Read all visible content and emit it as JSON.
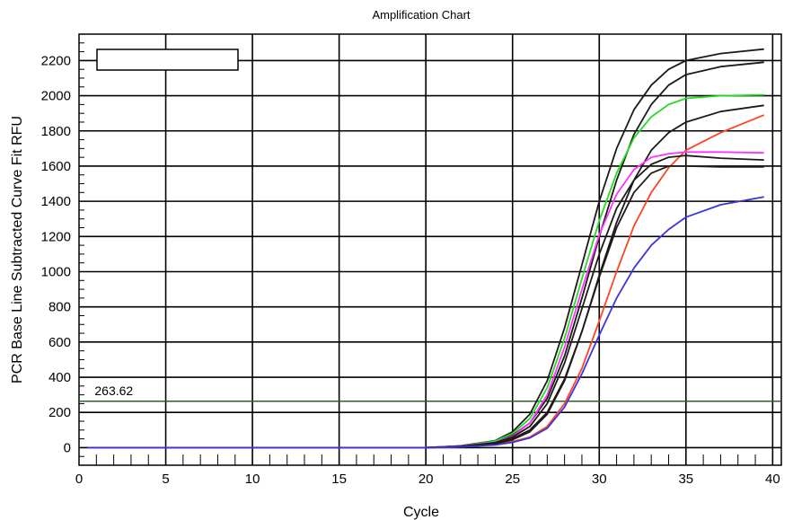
{
  "chart_data": {
    "type": "line",
    "title": "Amplification Chart",
    "xlabel": "Cycle",
    "ylabel": "PCR Base Line Subtracted Curve Fit RFU",
    "xlim": [
      0,
      40.5
    ],
    "ylim": [
      -100,
      2350
    ],
    "x_ticks": [
      0,
      5,
      10,
      15,
      20,
      25,
      30,
      35,
      40
    ],
    "y_ticks": [
      0,
      200,
      400,
      600,
      800,
      1000,
      1200,
      1400,
      1600,
      1800,
      2000,
      2200
    ],
    "grid": true,
    "legend_box": "top-left",
    "threshold": {
      "value": 263.62,
      "label": "263.62",
      "color": "#2e5e2e"
    },
    "series": [
      {
        "color": "#1f1a1a",
        "values": [
          [
            1,
            0
          ],
          [
            20,
            0
          ],
          [
            22,
            10
          ],
          [
            24,
            40
          ],
          [
            25,
            90
          ],
          [
            26,
            190
          ],
          [
            27,
            380
          ],
          [
            28,
            680
          ],
          [
            29,
            1040
          ],
          [
            30,
            1400
          ],
          [
            31,
            1700
          ],
          [
            32,
            1920
          ],
          [
            33,
            2060
          ],
          [
            34,
            2150
          ],
          [
            35,
            2200
          ],
          [
            37,
            2240
          ],
          [
            39.5,
            2265
          ]
        ]
      },
      {
        "color": "#1f1a1a",
        "values": [
          [
            20,
            0
          ],
          [
            22,
            8
          ],
          [
            24,
            35
          ],
          [
            25,
            70
          ],
          [
            26,
            140
          ],
          [
            27,
            280
          ],
          [
            28,
            520
          ],
          [
            29,
            850
          ],
          [
            30,
            1200
          ],
          [
            31,
            1520
          ],
          [
            32,
            1780
          ],
          [
            33,
            1950
          ],
          [
            34,
            2060
          ],
          [
            35,
            2120
          ],
          [
            37,
            2165
          ],
          [
            39.5,
            2190
          ]
        ]
      },
      {
        "color": "#22dd22",
        "values": [
          [
            20,
            0
          ],
          [
            22,
            8
          ],
          [
            24,
            38
          ],
          [
            25,
            80
          ],
          [
            26,
            165
          ],
          [
            27,
            340
          ],
          [
            28,
            620
          ],
          [
            29,
            960
          ],
          [
            30,
            1290
          ],
          [
            31,
            1560
          ],
          [
            32,
            1760
          ],
          [
            33,
            1880
          ],
          [
            34,
            1950
          ],
          [
            35,
            1985
          ],
          [
            37,
            2000
          ],
          [
            39.5,
            2005
          ]
        ]
      },
      {
        "color": "#1f1a1a",
        "values": [
          [
            20,
            0
          ],
          [
            22,
            6
          ],
          [
            24,
            25
          ],
          [
            25,
            50
          ],
          [
            26,
            100
          ],
          [
            27,
            200
          ],
          [
            28,
            390
          ],
          [
            29,
            660
          ],
          [
            30,
            980
          ],
          [
            31,
            1280
          ],
          [
            32,
            1520
          ],
          [
            33,
            1690
          ],
          [
            34,
            1790
          ],
          [
            35,
            1850
          ],
          [
            37,
            1910
          ],
          [
            39.5,
            1945
          ]
        ]
      },
      {
        "color": "#ff4422",
        "values": [
          [
            20,
            0
          ],
          [
            22,
            4
          ],
          [
            24,
            18
          ],
          [
            25,
            35
          ],
          [
            26,
            60
          ],
          [
            27,
            120
          ],
          [
            28,
            250
          ],
          [
            29,
            450
          ],
          [
            30,
            720
          ],
          [
            31,
            1000
          ],
          [
            32,
            1260
          ],
          [
            33,
            1450
          ],
          [
            34,
            1590
          ],
          [
            35,
            1690
          ],
          [
            37,
            1790
          ],
          [
            39.5,
            1890
          ]
        ]
      },
      {
        "color": "#ff33ff",
        "values": [
          [
            0.5,
            0
          ],
          [
            20,
            0
          ],
          [
            22,
            8
          ],
          [
            24,
            30
          ],
          [
            25,
            65
          ],
          [
            26,
            140
          ],
          [
            27,
            300
          ],
          [
            28,
            570
          ],
          [
            29,
            900
          ],
          [
            30,
            1210
          ],
          [
            31,
            1440
          ],
          [
            32,
            1580
          ],
          [
            33,
            1650
          ],
          [
            34,
            1670
          ],
          [
            35,
            1680
          ],
          [
            37,
            1680
          ],
          [
            39.5,
            1675
          ]
        ]
      },
      {
        "color": "#1f1a1a",
        "values": [
          [
            20,
            0
          ],
          [
            22,
            7
          ],
          [
            24,
            28
          ],
          [
            25,
            60
          ],
          [
            26,
            120
          ],
          [
            27,
            250
          ],
          [
            28,
            480
          ],
          [
            29,
            790
          ],
          [
            30,
            1100
          ],
          [
            31,
            1360
          ],
          [
            32,
            1520
          ],
          [
            33,
            1610
          ],
          [
            34,
            1650
          ],
          [
            35,
            1660
          ],
          [
            37,
            1645
          ],
          [
            39.5,
            1635
          ]
        ]
      },
      {
        "color": "#1f1a1a",
        "values": [
          [
            20,
            0
          ],
          [
            22,
            5
          ],
          [
            24,
            22
          ],
          [
            25,
            45
          ],
          [
            26,
            90
          ],
          [
            27,
            190
          ],
          [
            28,
            380
          ],
          [
            29,
            660
          ],
          [
            30,
            970
          ],
          [
            31,
            1250
          ],
          [
            32,
            1450
          ],
          [
            33,
            1560
          ],
          [
            34,
            1600
          ],
          [
            35,
            1600
          ],
          [
            37,
            1595
          ],
          [
            39.5,
            1595
          ]
        ]
      },
      {
        "color": "#3a34dd",
        "values": [
          [
            0.5,
            0
          ],
          [
            20,
            0
          ],
          [
            22,
            4
          ],
          [
            24,
            15
          ],
          [
            25,
            30
          ],
          [
            26,
            55
          ],
          [
            27,
            110
          ],
          [
            28,
            230
          ],
          [
            29,
            420
          ],
          [
            30,
            640
          ],
          [
            31,
            850
          ],
          [
            32,
            1020
          ],
          [
            33,
            1150
          ],
          [
            34,
            1240
          ],
          [
            35,
            1310
          ],
          [
            37,
            1380
          ],
          [
            39.5,
            1425
          ]
        ]
      }
    ]
  }
}
